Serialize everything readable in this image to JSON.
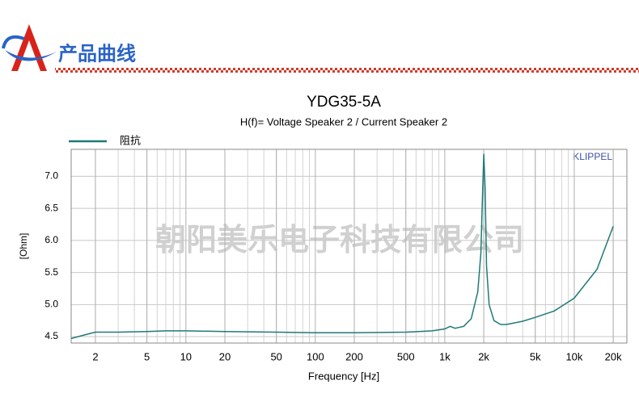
{
  "header": {
    "title": "产品曲线"
  },
  "chart_data": {
    "type": "line",
    "title": "YDG35-5A",
    "subtitle": "H(f)= Voltage Speaker 2 / Current Speaker 2",
    "xlabel": "Frequency [Hz]",
    "ylabel": "[Ohm]",
    "watermark": "朝阳美乐电子科技有限公司",
    "annotation": "KLIPPEL",
    "xscale": "log",
    "grid": true,
    "legend": "top-left",
    "xlim": [
      1.3,
      25500
    ],
    "ylim": [
      4.4,
      7.42
    ],
    "xticks": [
      2,
      5,
      10,
      20,
      50,
      100,
      200,
      500,
      {
        "value": 1000,
        "label": "1k"
      },
      {
        "value": 2000,
        "label": "2k"
      },
      {
        "value": 5000,
        "label": "5k"
      },
      {
        "value": 10000,
        "label": "10k"
      },
      {
        "value": 20000,
        "label": "20k"
      }
    ],
    "xminorticks": [
      2,
      3,
      4,
      5,
      6,
      7,
      8,
      9,
      20,
      30,
      40,
      50,
      60,
      70,
      80,
      90,
      200,
      300,
      400,
      500,
      600,
      700,
      800,
      900,
      2000,
      3000,
      4000,
      5000,
      6000,
      7000,
      8000,
      9000,
      20000
    ],
    "yticks": [
      {
        "value": 4.5,
        "label": "4.5"
      },
      {
        "value": 5,
        "label": "5.0"
      },
      {
        "value": 5.5,
        "label": "5.5"
      },
      {
        "value": 6,
        "label": "6.0"
      },
      {
        "value": 6.5,
        "label": "6.5"
      },
      {
        "value": 7,
        "label": "7.0"
      }
    ],
    "x": [
      1.3,
      1.6,
      2,
      3,
      5,
      7,
      10,
      20,
      50,
      100,
      200,
      500,
      800,
      1000,
      1100,
      1200,
      1400,
      1600,
      1800,
      1900,
      1950,
      2000,
      2050,
      2100,
      2200,
      2400,
      2700,
      3000,
      4000,
      5000,
      7000,
      10000,
      15000,
      20000
    ],
    "series": [
      {
        "name": "阻抗",
        "color": "#1f7a78",
        "values": [
          4.47,
          4.52,
          4.57,
          4.57,
          4.58,
          4.59,
          4.59,
          4.58,
          4.57,
          4.56,
          4.56,
          4.57,
          4.59,
          4.62,
          4.66,
          4.63,
          4.66,
          4.78,
          5.2,
          5.8,
          6.6,
          7.35,
          6.8,
          5.6,
          5.0,
          4.75,
          4.69,
          4.69,
          4.74,
          4.8,
          4.9,
          5.1,
          5.55,
          6.22
        ]
      }
    ]
  }
}
